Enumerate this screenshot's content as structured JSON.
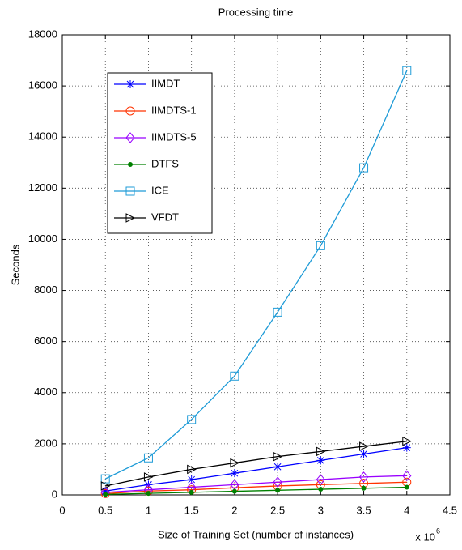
{
  "chart_data": {
    "type": "line",
    "title": "Processing time",
    "x_label": "Size of Training Set (number of instances)",
    "y_label": "Seconds",
    "x_multiplier": "x 10",
    "x_multiplier_exponent": "6",
    "x": [
      0.5,
      1,
      1.5,
      2,
      2.5,
      3,
      3.5,
      4
    ],
    "xlim": [
      0,
      4.5
    ],
    "xticks": [
      0,
      0.5,
      1,
      1.5,
      2,
      2.5,
      3,
      3.5,
      4,
      4.5
    ],
    "ylim": [
      0,
      18000
    ],
    "yticks": [
      0,
      2000,
      4000,
      6000,
      8000,
      10000,
      12000,
      14000,
      16000,
      18000
    ],
    "grid": true,
    "legend": "upper left",
    "series": [
      {
        "name": "IIMDT",
        "color": "#0000ff",
        "marker": "*",
        "values": [
          150,
          400,
          600,
          850,
          1100,
          1350,
          1600,
          1850
        ]
      },
      {
        "name": "IIMDTS-1",
        "color": "#ff3300",
        "marker": "o",
        "values": [
          50,
          150,
          200,
          280,
          350,
          400,
          450,
          500
        ]
      },
      {
        "name": "IIMDTS-5",
        "color": "#9900ff",
        "marker": "d",
        "values": [
          100,
          200,
          300,
          400,
          500,
          600,
          700,
          750
        ]
      },
      {
        "name": "DTFS",
        "color": "#008000",
        "marker": ".",
        "values": [
          20,
          60,
          100,
          140,
          180,
          220,
          260,
          300
        ]
      },
      {
        "name": "ICE",
        "color": "#1e9bd7",
        "marker": "s",
        "values": [
          630,
          1450,
          2950,
          4650,
          7150,
          9750,
          12800,
          16600
        ]
      },
      {
        "name": "VFDT",
        "color": "#000000",
        "marker": ">",
        "values": [
          350,
          700,
          1000,
          1250,
          1500,
          1700,
          1900,
          2100
        ]
      }
    ]
  }
}
